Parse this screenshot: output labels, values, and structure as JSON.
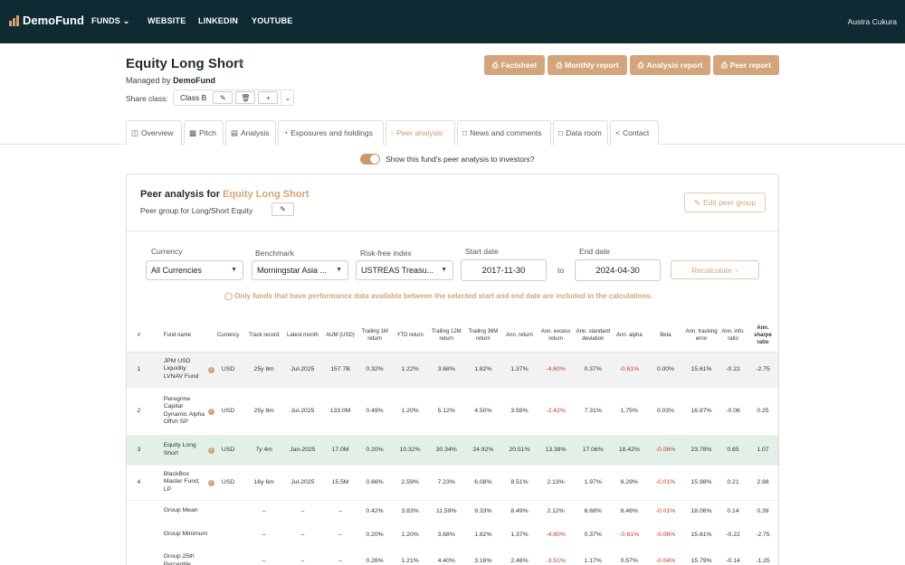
{
  "nav": {
    "brand": "DemoFund",
    "funds": "FUNDS",
    "website": "WEBSITE",
    "linkedin": "LINKEDIN",
    "youtube": "YOUTUBE",
    "user": "Austra Cukura",
    "brand_color": "#d5a06e",
    "bg_color": "#0e2b34"
  },
  "header": {
    "title": "Equity Long Short",
    "managed_prefix": "Managed by",
    "manager": "DemoFund",
    "share_label": "Share class:",
    "share_class": "Class B",
    "buttons": [
      "Factsheet",
      "Monthly report",
      "Analysis report",
      "Peer report"
    ]
  },
  "tabs": [
    "Overview",
    "Pitch",
    "Analysis",
    "Exposures and holdings",
    "Peer analysis",
    "News and comments",
    "Data room",
    "Contact"
  ],
  "toggle_label": "Show this fund's peer analysis to investors?",
  "panel": {
    "title_prefix": "Peer analysis for",
    "fund": "Equity Long Short",
    "peer_group": "Peer group for Long/Short Equity",
    "edit_peer": "Edit peer group",
    "currency_label": "Currency",
    "currency": "All Currencies",
    "benchmark_label": "Benchmark",
    "benchmark": "Morningstar Asia ...",
    "riskfree_label": "Risk-free index",
    "riskfree": "USTREAS Treasu...",
    "start_label": "Start date",
    "start": "2017-11-30",
    "to": "to",
    "end_label": "End date",
    "end": "2024-04-30",
    "recalc": "Recalculate",
    "note": "Only funds that have performance data available between the selected start and end date are included in the calculations."
  },
  "table": {
    "headers": [
      "#",
      "Fund name",
      "Currency",
      "Track record",
      "Latest month",
      "AUM (USD)",
      "Trailing 1M return",
      "YTD return",
      "Trailing 12M return",
      "Trailing 36M return",
      "Ann. return",
      "Ann. excess return",
      "Ann. standard deviation",
      "Ann. alpha",
      "Beta",
      "Ann. tracking error",
      "Ann. info. ratio",
      "Ann. sharpe ratio"
    ],
    "rows": [
      {
        "n": "1",
        "name": "JPM USD Liquidity LVNAV Fund",
        "cur": "USD",
        "track": "25y 8m",
        "latest": "Jul-2025",
        "aum": "157.7B",
        "m1": "0.32%",
        "ytd": "1.22%",
        "m12": "3.68%",
        "m36": "1.82%",
        "ann": "1.37%",
        "excess": "-4.60%",
        "std": "0.37%",
        "alpha": "-0.61%",
        "beta": "0.00%",
        "te": "15.61%",
        "info": "-0.22",
        "sharpe": "-2.75"
      },
      {
        "n": "2",
        "name": "Peregrine Capital Dynamic Alpha Offsh SP",
        "cur": "USD",
        "track": "25y 8m",
        "latest": "Jul-2025",
        "aum": "133.0M",
        "m1": "0.49%",
        "ytd": "1.20%",
        "m12": "5.12%",
        "m36": "4.50%",
        "ann": "3.59%",
        "excess": "-2.42%",
        "std": "7.31%",
        "alpha": "1.75%",
        "beta": "0.03%",
        "te": "16.87%",
        "info": "-0.06",
        "sharpe": "0.25"
      },
      {
        "n": "3",
        "name": "Equity Long Short",
        "cur": "USD",
        "track": "7y 4m",
        "latest": "Jan-2025",
        "aum": "17.0M",
        "m1": "0.20%",
        "ytd": "10.32%",
        "m12": "30.34%",
        "m36": "24.92%",
        "ann": "20.51%",
        "excess": "13.38%",
        "std": "17.06%",
        "alpha": "18.42%",
        "beta": "-0.06%",
        "te": "23.78%",
        "info": "0.65",
        "sharpe": "1.07"
      },
      {
        "n": "4",
        "name": "BlackBox Master Fund, LP",
        "cur": "USD",
        "track": "16y 6m",
        "latest": "Jul-2025",
        "aum": "15.5M",
        "m1": "0.66%",
        "ytd": "2.59%",
        "m12": "7.23%",
        "m36": "6.08%",
        "ann": "8.51%",
        "excess": "2.13%",
        "std": "1.97%",
        "alpha": "6.29%",
        "beta": "-0.01%",
        "te": "15.98%",
        "info": "0.21",
        "sharpe": "2.98"
      }
    ],
    "stats": [
      {
        "name": "Group Mean",
        "cur": "",
        "track": "–",
        "latest": "–",
        "aum": "–",
        "m1": "0.42%",
        "ytd": "3.83%",
        "m12": "11.59%",
        "m36": "9.33%",
        "ann": "8.49%",
        "excess": "2.12%",
        "std": "6.68%",
        "alpha": "6.46%",
        "beta": "-0.01%",
        "te": "18.06%",
        "info": "0.14",
        "sharpe": "0.39"
      },
      {
        "name": "Group Minimum",
        "cur": "",
        "track": "–",
        "latest": "–",
        "aum": "–",
        "m1": "0.20%",
        "ytd": "1.20%",
        "m12": "3.68%",
        "m36": "1.82%",
        "ann": "1.37%",
        "excess": "-4.60%",
        "std": "0.37%",
        "alpha": "-0.61%",
        "beta": "-0.06%",
        "te": "15.61%",
        "info": "-0.22",
        "sharpe": "-2.75"
      },
      {
        "name": "Group 25th Percentile",
        "cur": "",
        "track": "–",
        "latest": "–",
        "aum": "–",
        "m1": "0.26%",
        "ytd": "1.21%",
        "m12": "4.40%",
        "m36": "3.16%",
        "ann": "2.48%",
        "excess": "-3.51%",
        "std": "1.17%",
        "alpha": "0.57%",
        "beta": "-0.04%",
        "te": "15.79%",
        "info": "-0.14",
        "sharpe": "-1.25"
      }
    ]
  }
}
